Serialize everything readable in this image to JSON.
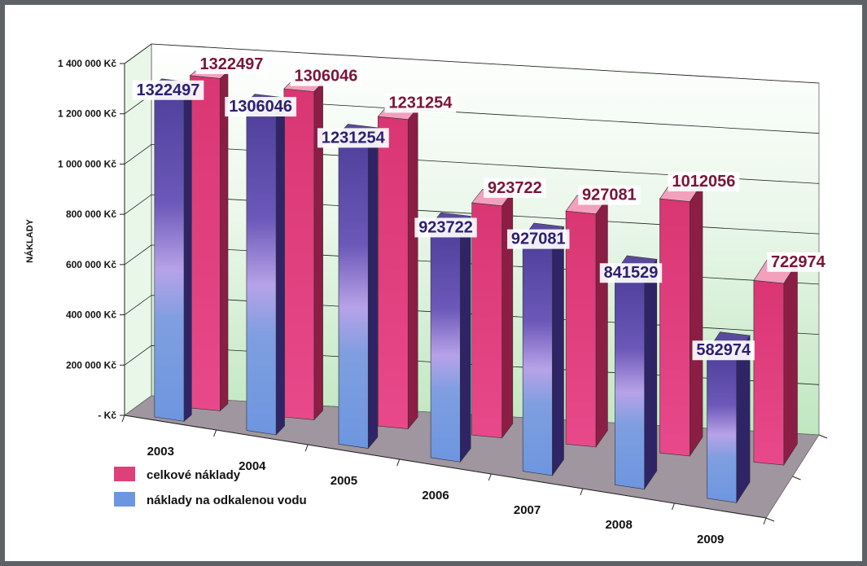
{
  "chart_data": {
    "type": "bar",
    "ylabel": "NÁKLADY",
    "y_ticks": [
      "- Kč",
      "200 000 Kč",
      "400 000 Kč",
      "600 000 Kč",
      "800 000 Kč",
      "1 000 000 Kč",
      "1 200 000 Kč",
      "1 400 000 Kč"
    ],
    "ylim": [
      0,
      1400000
    ],
    "categories": [
      "2003",
      "2004",
      "2005",
      "2006",
      "2007",
      "2008",
      "2009"
    ],
    "series": [
      {
        "name": "celkové náklady",
        "values": [
          1322497,
          1306046,
          1231254,
          923722,
          927081,
          1012056,
          722974
        ]
      },
      {
        "name": "náklady na odkalenou vodu",
        "values": [
          1322497,
          1306046,
          1231254,
          923722,
          927081,
          841529,
          582974
        ]
      }
    ],
    "data_labels": {
      "celkove": [
        "1322497",
        "1306046",
        "1231254",
        "923722",
        "927081",
        "1012056",
        "722974"
      ],
      "voda": [
        "1322497",
        "1306046",
        "1231254",
        "923722",
        "927081",
        "841529",
        "582974"
      ]
    },
    "legend_position": "bottom-left",
    "grid": true,
    "colors": {
      "celkove": "#e0407a",
      "celkove_top": "#f3a0bd",
      "celkove_side": "#8c1d44",
      "voda_top": "#5a4a9e",
      "voda_side": "#2e2466",
      "voda_gradient": [
        "#4e3f9a",
        "#6b58b8",
        "#b7a2e8",
        "#7f9ee0",
        "#6d96e0"
      ],
      "celkove_label": "#7a1535",
      "voda_label": "#2c2070",
      "back_wall": "#d8f0d8",
      "floor": "#a0969f"
    }
  }
}
